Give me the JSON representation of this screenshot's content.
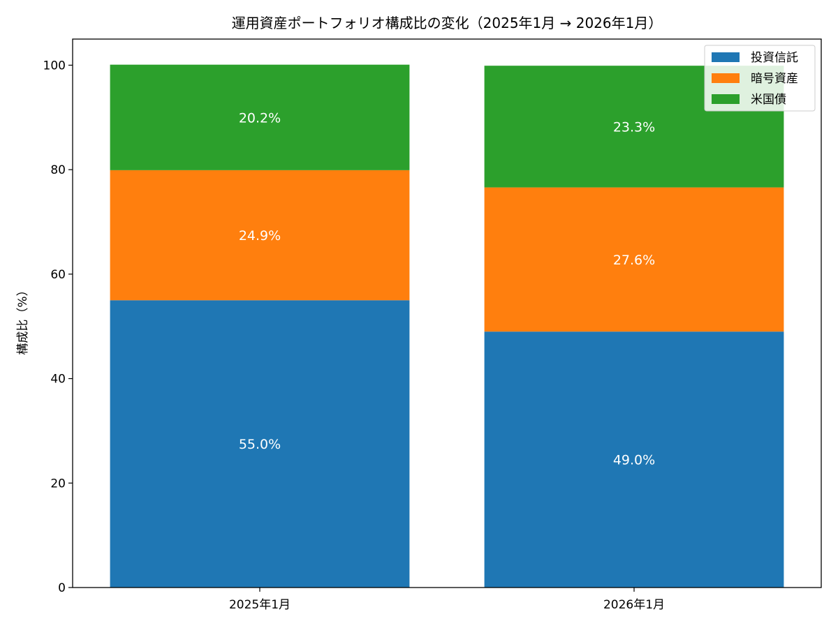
{
  "chart_data": {
    "type": "bar",
    "stacked": true,
    "title": "運用資産ポートフォリオ構成比の変化（2025年1月 → 2026年1月）",
    "xlabel": "",
    "ylabel": "構成比（%）",
    "ylim": [
      0,
      105
    ],
    "yticks": [
      0,
      20,
      40,
      60,
      80,
      100
    ],
    "categories": [
      "2025年1月",
      "2026年1月"
    ],
    "series": [
      {
        "name": "投資信託",
        "color": "#1f77b4",
        "values": [
          55.0,
          49.0
        ],
        "labels": [
          "55.0%",
          "49.0%"
        ]
      },
      {
        "name": "暗号資産",
        "color": "#ff7f0e",
        "values": [
          24.9,
          27.6
        ],
        "labels": [
          "24.9%",
          "27.6%"
        ]
      },
      {
        "name": "米国債",
        "color": "#2ca02c",
        "values": [
          20.2,
          23.3
        ],
        "labels": [
          "20.2%",
          "23.3%"
        ]
      }
    ],
    "grid": false,
    "legend_position": "top-right"
  }
}
